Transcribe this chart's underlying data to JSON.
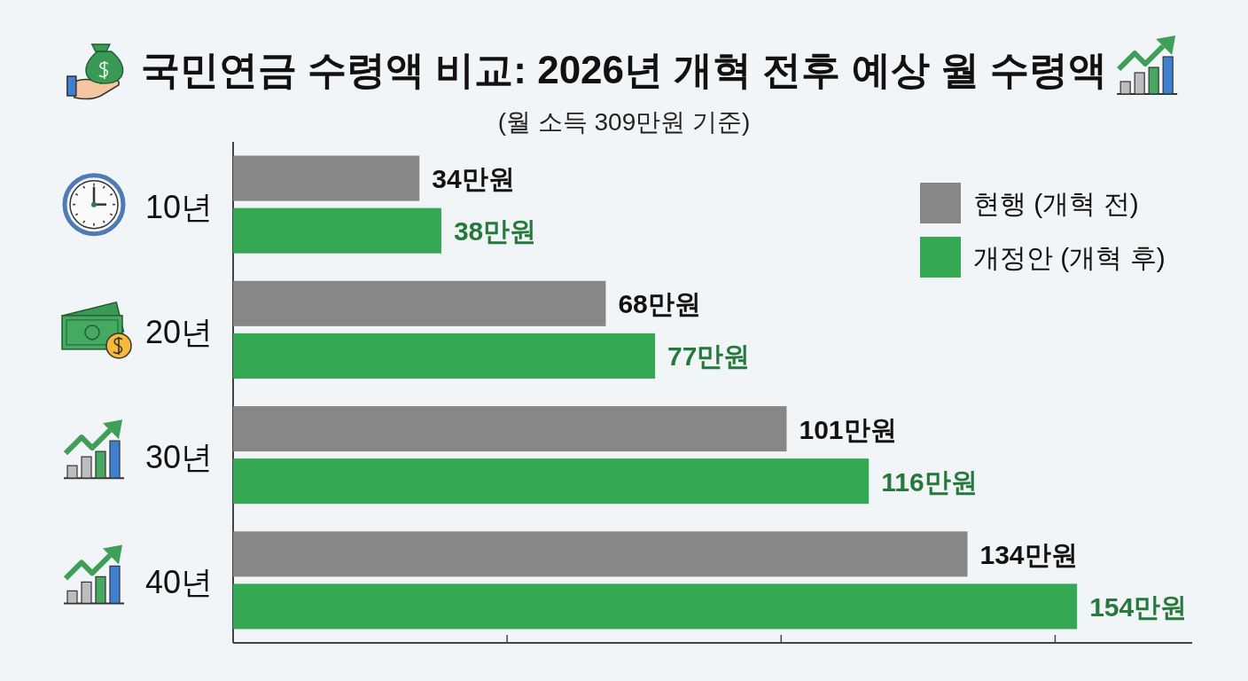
{
  "chart_data": {
    "type": "bar",
    "orientation": "horizontal",
    "title": "국민연금 수령액 비교: 2026년 개혁 전후 예상 월 수령액",
    "subtitle": "(월 소득 309만원 기준)",
    "categories": [
      "10년",
      "20년",
      "30년",
      "40년"
    ],
    "series": [
      {
        "name": "현행 (개혁 전)",
        "color": "#878787",
        "values": [
          34,
          68,
          101,
          134
        ],
        "value_labels": [
          "34만원",
          "68만원",
          "101만원",
          "134만원"
        ]
      },
      {
        "name": "개정안 (개혁 후)",
        "color": "#34a853",
        "values": [
          38,
          77,
          116,
          154
        ],
        "value_labels": [
          "38만원",
          "77만원",
          "116만원",
          "154만원"
        ]
      }
    ],
    "xlim": [
      0,
      175
    ],
    "xticks": [
      {
        "value": 50,
        "label": null
      },
      {
        "value": 100,
        "label": null
      },
      {
        "value": 150,
        "label": null
      }
    ],
    "tick_labels": "y",
    "legend": "top right"
  }
}
